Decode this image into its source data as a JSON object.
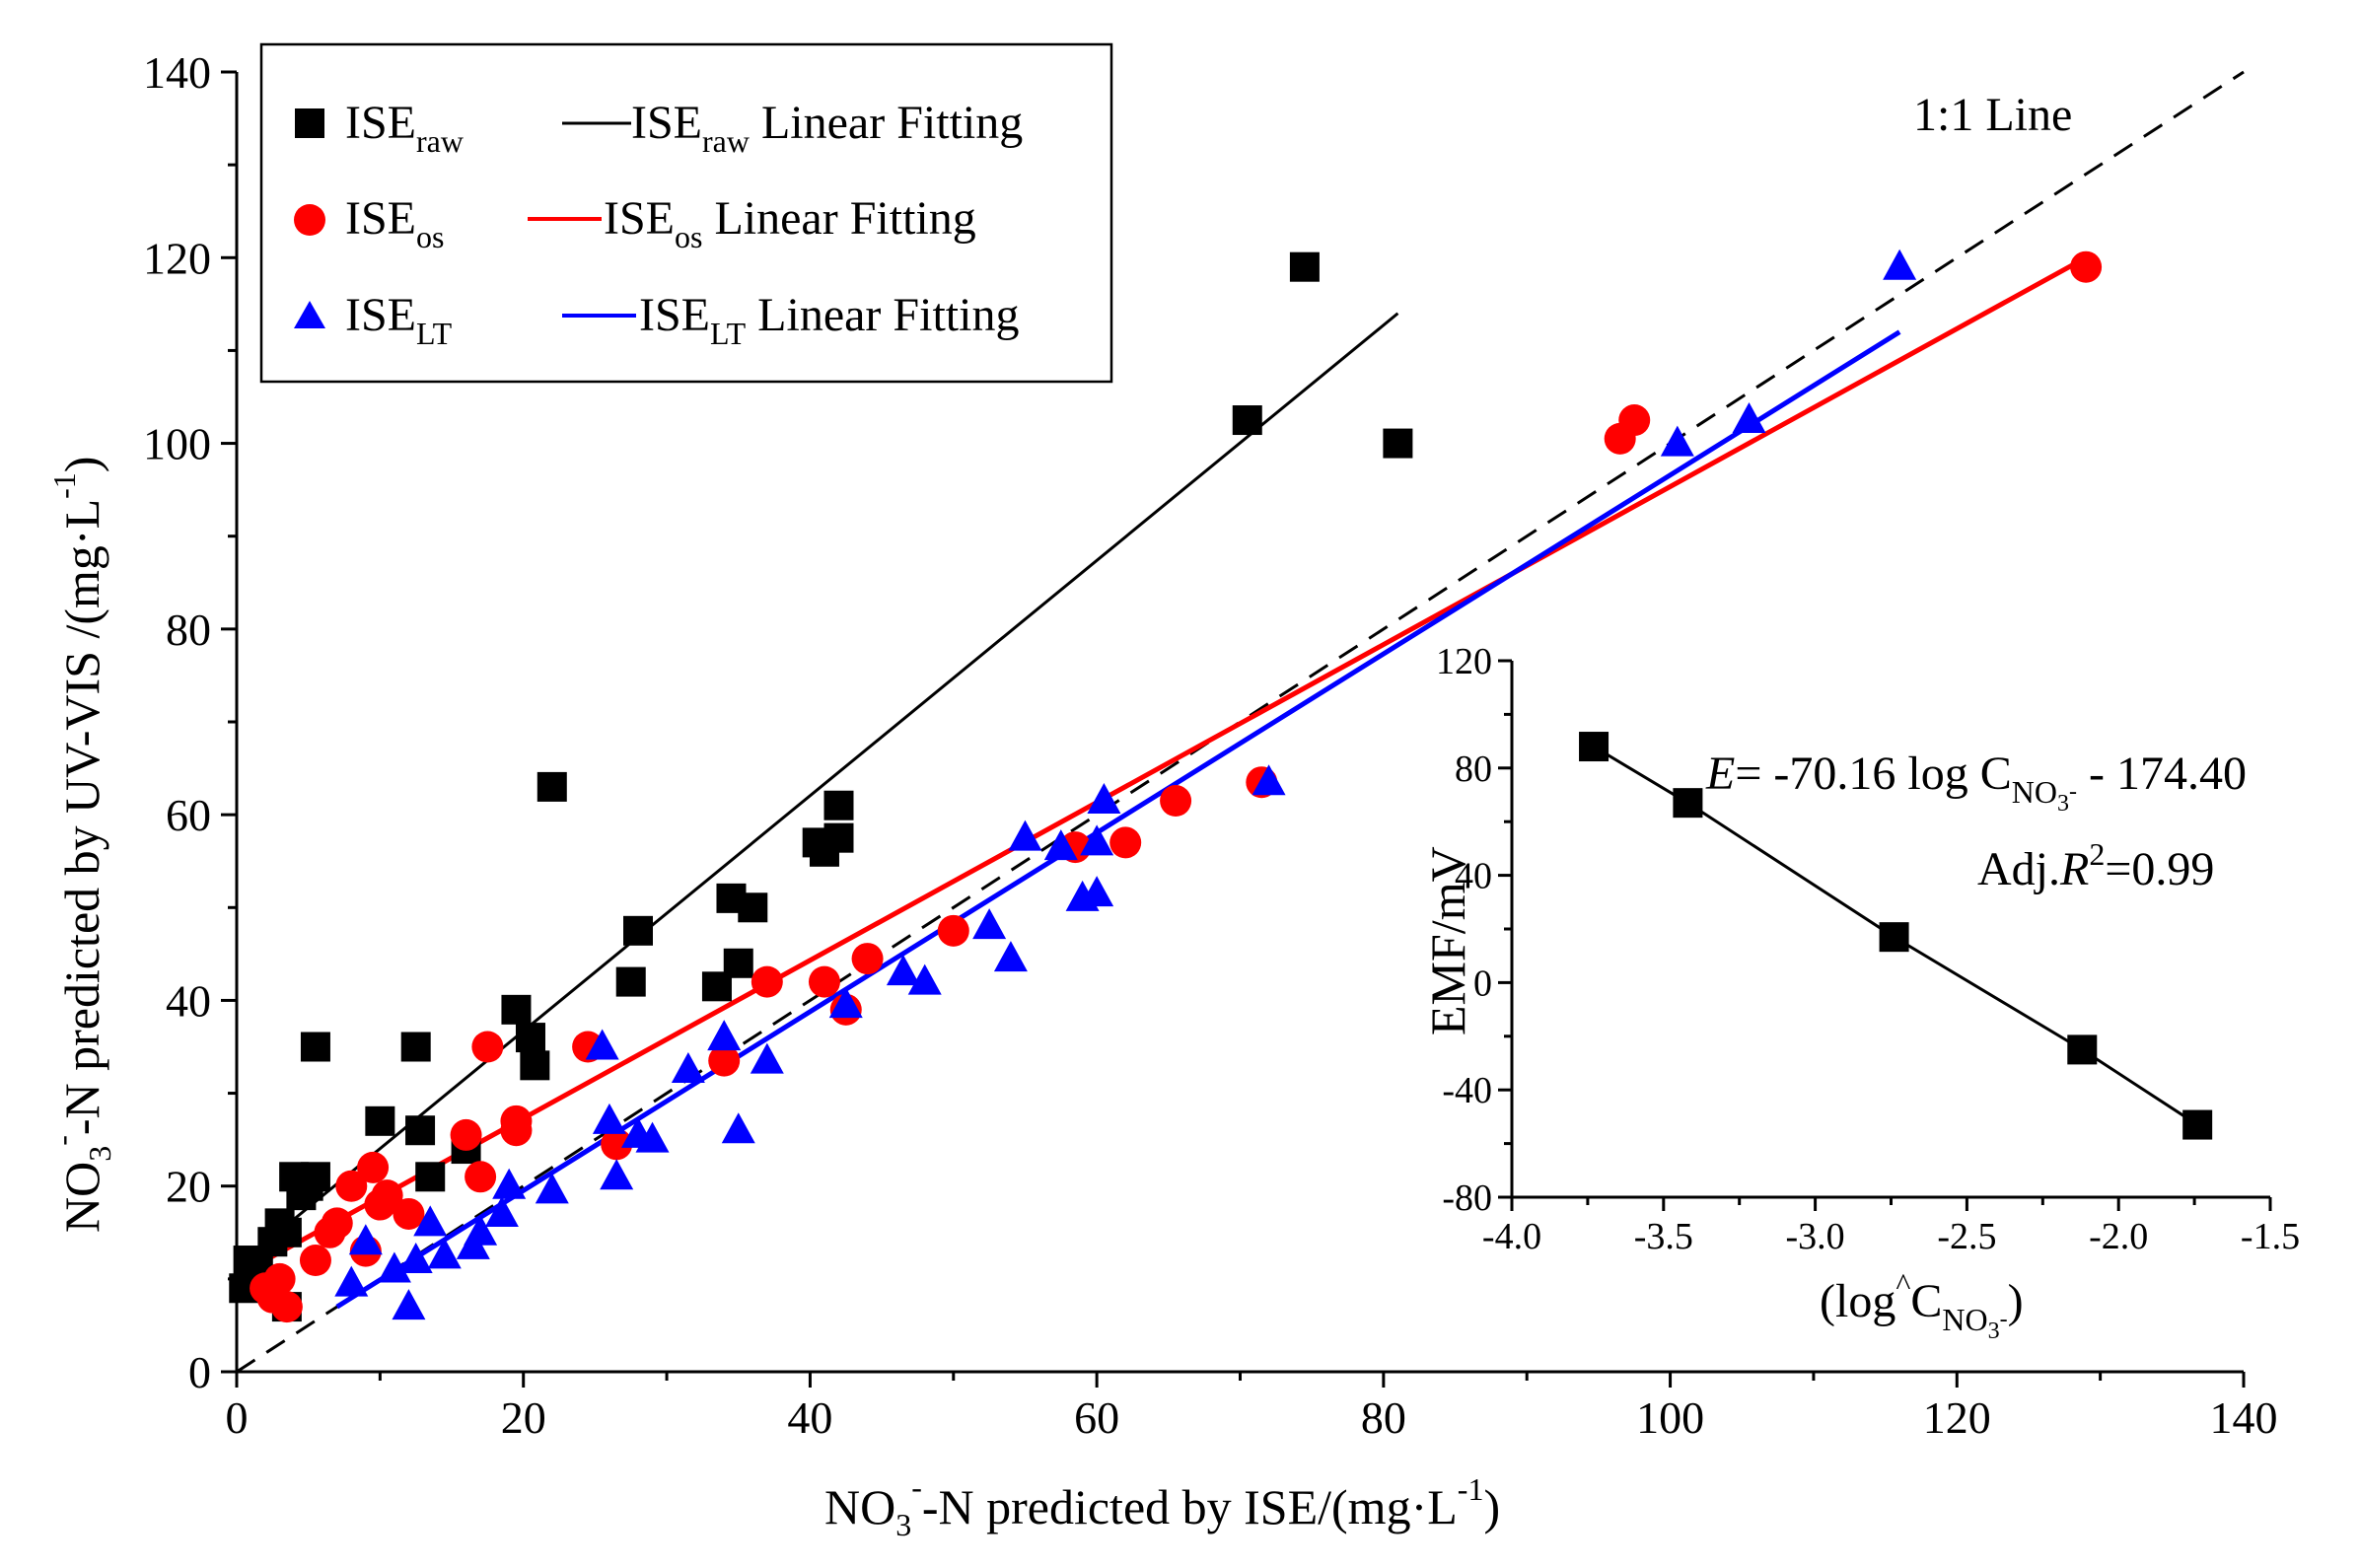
{
  "chart_data": {
    "type": "scatter",
    "main": {
      "xlabel": {
        "base": "NO",
        "sub": "3",
        "sup": "-",
        "rest": "-N predicted by ISE/(mg·L",
        "rest_sup": "-1",
        "close": ")"
      },
      "ylabel": {
        "base": "NO",
        "sub": "3",
        "sup": "-",
        "rest": "-N predicted by UV-VIS /(mg·L",
        "rest_sup": "-1",
        "close": ")"
      },
      "xlim": [
        0,
        140
      ],
      "ylim": [
        0,
        140
      ],
      "xticks": [
        "0",
        "20",
        "40",
        "60",
        "80",
        "100",
        "120",
        "140"
      ],
      "yticks": [
        "0",
        "20",
        "40",
        "60",
        "80",
        "100",
        "120",
        "140"
      ],
      "reference_line": {
        "label": "1:1 Line",
        "x": [
          0,
          140
        ],
        "y": [
          0,
          140
        ],
        "color": "#000000"
      },
      "series": [
        {
          "name": "ISE_raw",
          "label": "ISE",
          "sub": "raw",
          "marker": "square",
          "color": "#000000",
          "fit_label": "Linear Fitting",
          "fit": {
            "x": [
              0.5,
              81
            ],
            "y": [
              12,
              114
            ]
          },
          "points": [
            [
              0.5,
              9
            ],
            [
              0.8,
              12
            ],
            [
              1.5,
              11
            ],
            [
              2.5,
              14
            ],
            [
              3,
              16
            ],
            [
              3.5,
              15
            ],
            [
              4,
              21
            ],
            [
              4.5,
              19
            ],
            [
              5,
              20
            ],
            [
              5.5,
              21
            ],
            [
              5.5,
              35
            ],
            [
              3.5,
              7
            ],
            [
              10,
              27
            ],
            [
              12.5,
              35
            ],
            [
              12.8,
              26
            ],
            [
              13.5,
              21
            ],
            [
              16,
              24
            ],
            [
              19.5,
              39
            ],
            [
              20.5,
              36
            ],
            [
              20.8,
              33
            ],
            [
              22,
              63
            ],
            [
              27.5,
              42
            ],
            [
              28,
              47.5
            ],
            [
              33.5,
              41.5
            ],
            [
              34.5,
              51
            ],
            [
              35,
              44
            ],
            [
              36,
              50
            ],
            [
              40.5,
              57
            ],
            [
              41,
              56
            ],
            [
              42,
              57.5
            ],
            [
              42,
              61
            ],
            [
              70.5,
              102.5
            ],
            [
              74.5,
              119
            ],
            [
              81,
              100
            ]
          ]
        },
        {
          "name": "ISE_os",
          "label": "ISE",
          "sub": "os",
          "marker": "circle",
          "color": "#ff0000",
          "fit_label": "Linear Fitting",
          "fit": {
            "x": [
              2,
              129
            ],
            "y": [
              12,
              120
            ]
          },
          "points": [
            [
              2,
              9
            ],
            [
              2.5,
              8
            ],
            [
              3,
              10
            ],
            [
              3.5,
              7
            ],
            [
              5.5,
              12
            ],
            [
              6.5,
              15
            ],
            [
              7,
              16
            ],
            [
              8,
              20
            ],
            [
              9,
              13
            ],
            [
              9.5,
              22
            ],
            [
              10,
              18
            ],
            [
              10.5,
              19
            ],
            [
              12,
              17
            ],
            [
              16,
              25.5
            ],
            [
              17,
              21
            ],
            [
              17.5,
              35
            ],
            [
              19.5,
              27
            ],
            [
              19.5,
              26
            ],
            [
              24.5,
              35
            ],
            [
              26.5,
              24.5
            ],
            [
              34,
              33.5
            ],
            [
              37,
              42
            ],
            [
              41,
              42
            ],
            [
              42.5,
              39
            ],
            [
              44,
              44.5
            ],
            [
              50,
              47.5
            ],
            [
              58.5,
              56.5
            ],
            [
              62,
              57
            ],
            [
              65.5,
              61.5
            ],
            [
              71.5,
              63.5
            ],
            [
              96.5,
              100.5
            ],
            [
              97.5,
              102.5
            ],
            [
              129,
              119
            ]
          ]
        },
        {
          "name": "ISE_LT",
          "label": "ISE",
          "sub": "LT",
          "marker": "triangle",
          "color": "#0000ff",
          "fit_label": "Linear Fitting",
          "fit": {
            "x": [
              7,
              116
            ],
            "y": [
              7,
              112
            ]
          },
          "points": [
            [
              8,
              9.5
            ],
            [
              9,
              14
            ],
            [
              11,
              11
            ],
            [
              12,
              7
            ],
            [
              12.5,
              12
            ],
            [
              13.5,
              16
            ],
            [
              14.5,
              12.5
            ],
            [
              16.5,
              13.5
            ],
            [
              17,
              15
            ],
            [
              18.5,
              17
            ],
            [
              19,
              20
            ],
            [
              22,
              19.5
            ],
            [
              25.5,
              35
            ],
            [
              26,
              27
            ],
            [
              26.5,
              21
            ],
            [
              28,
              25.5
            ],
            [
              29,
              25
            ],
            [
              31.5,
              32.5
            ],
            [
              34,
              36
            ],
            [
              35,
              26
            ],
            [
              37,
              33.5
            ],
            [
              42.5,
              39.5
            ],
            [
              46.5,
              43
            ],
            [
              48,
              42
            ],
            [
              52.5,
              48
            ],
            [
              54,
              44.5
            ],
            [
              55,
              57.5
            ],
            [
              57.5,
              56.5
            ],
            [
              59,
              51
            ],
            [
              60,
              51.5
            ],
            [
              60.5,
              61.5
            ],
            [
              60,
              57
            ],
            [
              72,
              63.5
            ],
            [
              100.5,
              100
            ],
            [
              105.5,
              102.5
            ],
            [
              116,
              119
            ]
          ]
        }
      ]
    },
    "inset": {
      "type": "line",
      "xlabel": {
        "pre": "(log",
        "hat": "^",
        "c": "C",
        "sub": "NO",
        "sub2": "3",
        "sup": "-",
        "close": ")"
      },
      "ylabel": "EMF/mV",
      "xlim": [
        -4.0,
        -1.5
      ],
      "ylim": [
        -80,
        120
      ],
      "xticks": [
        "-4.0",
        "-3.5",
        "-3.0",
        "-2.5",
        "-2.0",
        "-1.5"
      ],
      "yticks": [
        "-80",
        "-40",
        "0",
        "40",
        "80",
        "120"
      ],
      "x": [
        -3.73,
        -3.42,
        -2.74,
        -2.12,
        -1.74
      ],
      "y": [
        88,
        67,
        17,
        -25,
        -53
      ],
      "equation": {
        "e": "E",
        "rest": "= -70.16 log C",
        "sub": "NO",
        "sub2": "3",
        "sup": "-",
        "tail": " - 174.40"
      },
      "r2": {
        "pre": "Adj.",
        "r": "R",
        "sup": "2",
        "post": "=0.99"
      }
    }
  }
}
